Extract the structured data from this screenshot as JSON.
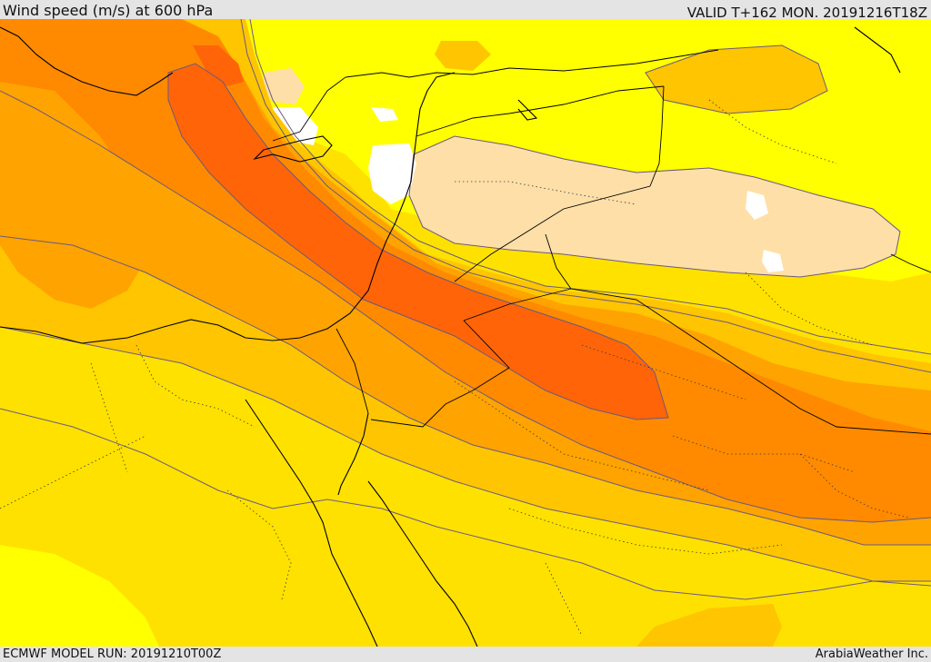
{
  "header": {
    "title": "Wind speed (m/s) at 600 hPa",
    "valid_time": "VALID T+162 MON. 20191216T18Z"
  },
  "footer": {
    "model_run": "ECMWF MODEL RUN: 20191210T00Z",
    "credit": "ArabiaWeather Inc."
  },
  "map": {
    "variable": "wind speed",
    "level": "600 hPa",
    "units": "m/s",
    "fill_colors": {
      "very_light": "#ffdfa8",
      "light_yellow": "#ffff00",
      "yellow": "#ffe100",
      "yellow_orange": "#ffc500",
      "orange": "#ffa300",
      "dark_orange": "#ff8a00",
      "red_orange": "#ff6408",
      "calm": "#ffffff"
    },
    "line_colors": {
      "contour": "#6a5a80",
      "coastline": "#000000",
      "border": "#000000"
    }
  }
}
